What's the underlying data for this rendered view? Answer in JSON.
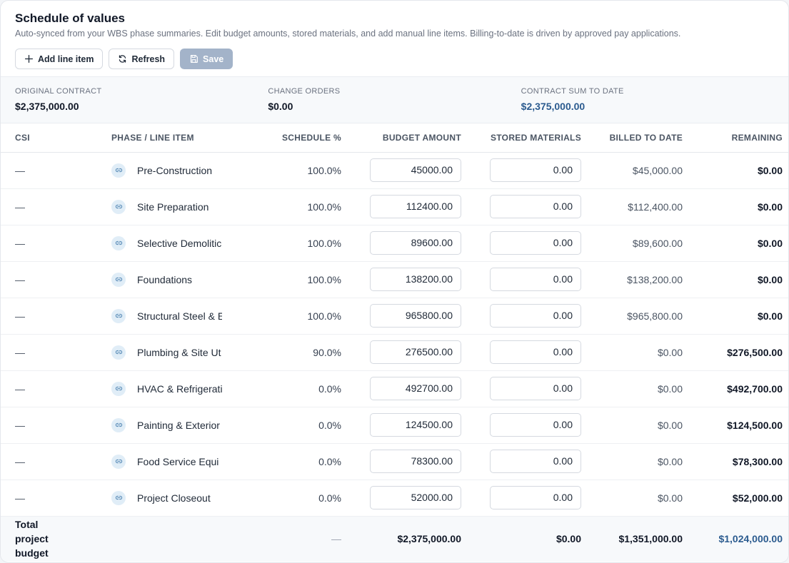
{
  "header": {
    "title": "Schedule of values",
    "subtitle": "Auto-synced from your WBS phase summaries. Edit budget amounts, stored materials, and add manual line items. Billing-to-date is driven by approved pay applications."
  },
  "toolbar": {
    "add_label": "Add line item",
    "refresh_label": "Refresh",
    "save_label": "Save"
  },
  "summary": {
    "original_label": "ORIGINAL CONTRACT",
    "original_value": "$2,375,000.00",
    "change_label": "CHANGE ORDERS",
    "change_value": "$0.00",
    "sum_label": "CONTRACT SUM TO DATE",
    "sum_value": "$2,375,000.00"
  },
  "columns": {
    "csi": "CSI",
    "phase": "PHASE / LINE ITEM",
    "schedule": "SCHEDULE %",
    "budget": "BUDGET AMOUNT",
    "stored": "STORED MATERIALS",
    "billed": "BILLED TO DATE",
    "remaining": "REMAINING"
  },
  "rows": [
    {
      "csi": "—",
      "phase": "Pre-Construction",
      "schedule": "100.0%",
      "budget": "45000.00",
      "stored": "0.00",
      "billed": "$45,000.00",
      "remaining": "$0.00"
    },
    {
      "csi": "—",
      "phase": "Site Preparation",
      "schedule": "100.0%",
      "budget": "112400.00",
      "stored": "0.00",
      "billed": "$112,400.00",
      "remaining": "$0.00"
    },
    {
      "csi": "—",
      "phase": "Selective Demolitic",
      "schedule": "100.0%",
      "budget": "89600.00",
      "stored": "0.00",
      "billed": "$89,600.00",
      "remaining": "$0.00"
    },
    {
      "csi": "—",
      "phase": "Foundations",
      "schedule": "100.0%",
      "budget": "138200.00",
      "stored": "0.00",
      "billed": "$138,200.00",
      "remaining": "$0.00"
    },
    {
      "csi": "—",
      "phase": "Structural Steel & E",
      "schedule": "100.0%",
      "budget": "965800.00",
      "stored": "0.00",
      "billed": "$965,800.00",
      "remaining": "$0.00"
    },
    {
      "csi": "—",
      "phase": "Plumbing & Site Ut",
      "schedule": "90.0%",
      "budget": "276500.00",
      "stored": "0.00",
      "billed": "$0.00",
      "remaining": "$276,500.00"
    },
    {
      "csi": "—",
      "phase": "HVAC & Refrigerati",
      "schedule": "0.0%",
      "budget": "492700.00",
      "stored": "0.00",
      "billed": "$0.00",
      "remaining": "$492,700.00"
    },
    {
      "csi": "—",
      "phase": "Painting & Exterior",
      "schedule": "0.0%",
      "budget": "124500.00",
      "stored": "0.00",
      "billed": "$0.00",
      "remaining": "$124,500.00"
    },
    {
      "csi": "—",
      "phase": "Food Service Equi",
      "schedule": "0.0%",
      "budget": "78300.00",
      "stored": "0.00",
      "billed": "$0.00",
      "remaining": "$78,300.00"
    },
    {
      "csi": "—",
      "phase": "Project Closeout",
      "schedule": "0.0%",
      "budget": "52000.00",
      "stored": "0.00",
      "billed": "$0.00",
      "remaining": "$52,000.00"
    }
  ],
  "totals": {
    "label": "Total project budget",
    "schedule": "—",
    "budget": "$2,375,000.00",
    "stored": "$0.00",
    "billed": "$1,351,000.00",
    "remaining": "$1,024,000.00"
  },
  "colors": {
    "accent": "#2b5b8f",
    "save_disabled": "#a3b3c9",
    "link_badge_bg": "#e0edf7"
  },
  "icons": {
    "add": "plus-icon",
    "refresh": "refresh-icon",
    "save": "save-icon",
    "row_link": "link-icon"
  }
}
